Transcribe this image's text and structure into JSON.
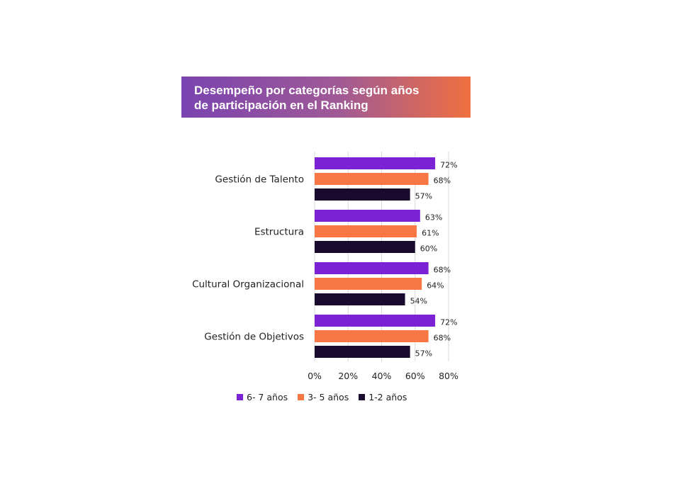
{
  "title": [
    "Desempeño por categorías según años",
    "de participación en el Ranking"
  ],
  "colors": {
    "banner_start": "#7a44b0",
    "banner_end": "#f07040"
  },
  "chart_data": {
    "type": "bar",
    "orientation": "horizontal",
    "categories": [
      "Gestión de Talento",
      "Estructura",
      "Cultural Organizacional",
      "Gestión de Objetivos"
    ],
    "series": [
      {
        "name": "6- 7 años",
        "color": "#7b22d4",
        "values": [
          72,
          63,
          68,
          72
        ],
        "labels": [
          "72%",
          "63%",
          "68%",
          "72%"
        ]
      },
      {
        "name": "3- 5 años",
        "color": "#f97744",
        "values": [
          68,
          61,
          64,
          68
        ],
        "labels": [
          "68%",
          "61%",
          "64%",
          "68%"
        ]
      },
      {
        "name": "1-2 años",
        "color": "#1a0b2e",
        "values": [
          57,
          60,
          54,
          57
        ],
        "labels": [
          "57%",
          "60%",
          "54%",
          "57%"
        ]
      }
    ],
    "xlim": [
      0,
      80
    ],
    "xticks": [
      "0%",
      "20%",
      "40%",
      "60%",
      "80%"
    ],
    "grid": "vertical",
    "legend": "bottom"
  }
}
